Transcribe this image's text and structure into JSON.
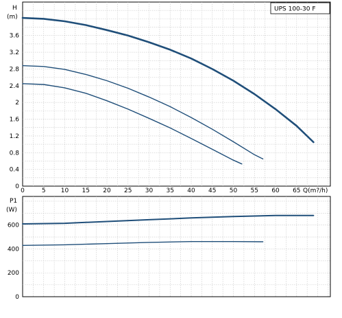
{
  "chart_data": [
    {
      "type": "line",
      "title": "UPS 100-30 F",
      "ylabel_top": "H",
      "ylabel_unit": "(m)",
      "xlabel": "Q(m?/h)",
      "xlim": [
        0,
        73
      ],
      "ylim": [
        0,
        4.4
      ],
      "x_ticks": [
        "0",
        "5",
        "10",
        "15",
        "20",
        "25",
        "30",
        "35",
        "40",
        "45",
        "50",
        "55",
        "60",
        "65"
      ],
      "y_ticks": [
        "0",
        "0.4",
        "0.8",
        "1.2",
        "1.6",
        "2",
        "2.4",
        "2.8",
        "3.2",
        "3.6"
      ],
      "grid": true,
      "series": [
        {
          "stroke": "#1f4e79",
          "width": 2.6,
          "x": [
            0,
            5,
            10,
            15,
            20,
            25,
            30,
            35,
            40,
            45,
            50,
            55,
            60,
            65,
            69
          ],
          "y": [
            4.02,
            4.0,
            3.94,
            3.85,
            3.73,
            3.6,
            3.44,
            3.26,
            3.05,
            2.8,
            2.52,
            2.2,
            1.84,
            1.44,
            1.05
          ]
        },
        {
          "stroke": "#1f4e79",
          "width": 1.4,
          "x": [
            0,
            5,
            10,
            15,
            20,
            25,
            30,
            35,
            40,
            45,
            50,
            55,
            57
          ],
          "y": [
            2.88,
            2.86,
            2.79,
            2.67,
            2.52,
            2.34,
            2.13,
            1.9,
            1.64,
            1.36,
            1.06,
            0.75,
            0.65
          ]
        },
        {
          "stroke": "#1f4e79",
          "width": 1.4,
          "x": [
            0,
            5,
            10,
            15,
            20,
            25,
            30,
            35,
            40,
            45,
            50,
            52
          ],
          "y": [
            2.45,
            2.43,
            2.35,
            2.22,
            2.04,
            1.84,
            1.62,
            1.39,
            1.14,
            0.88,
            0.62,
            0.53
          ]
        }
      ]
    },
    {
      "type": "line",
      "ylabel_top": "P1",
      "ylabel_unit": "(W)",
      "xlim": [
        0,
        73
      ],
      "ylim": [
        0,
        840
      ],
      "y_ticks": [
        "0",
        "200",
        "400",
        "600"
      ],
      "grid": true,
      "series": [
        {
          "stroke": "#1f4e79",
          "width": 2.0,
          "x": [
            0,
            10,
            20,
            30,
            40,
            50,
            60,
            69
          ],
          "y": [
            610,
            615,
            630,
            645,
            660,
            672,
            680,
            680
          ]
        },
        {
          "stroke": "#1f4e79",
          "width": 1.4,
          "x": [
            0,
            10,
            20,
            30,
            40,
            50,
            57
          ],
          "y": [
            430,
            435,
            445,
            455,
            462,
            462,
            460
          ]
        }
      ]
    }
  ]
}
